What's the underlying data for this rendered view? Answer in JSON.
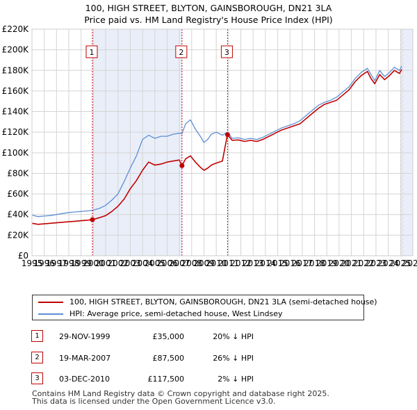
{
  "chart_data": {
    "type": "line",
    "title": "100, HIGH STREET, BLYTON, GAINSBOROUGH, DN21 3LA",
    "subtitle": "Price paid vs. HM Land Registry's House Price Index (HPI)",
    "xlim": [
      1995,
      2026
    ],
    "ylim": [
      0,
      220000
    ],
    "y_ticks": [
      {
        "value": 0,
        "label": "£0"
      },
      {
        "value": 20000,
        "label": "£20K"
      },
      {
        "value": 40000,
        "label": "£40K"
      },
      {
        "value": 60000,
        "label": "£60K"
      },
      {
        "value": 80000,
        "label": "£80K"
      },
      {
        "value": 100000,
        "label": "£100K"
      },
      {
        "value": 120000,
        "label": "£120K"
      },
      {
        "value": 140000,
        "label": "£140K"
      },
      {
        "value": 160000,
        "label": "£160K"
      },
      {
        "value": 180000,
        "label": "£180K"
      },
      {
        "value": 200000,
        "label": "£200K"
      },
      {
        "value": 220000,
        "label": "£220K"
      }
    ],
    "x_ticks": [
      "1995",
      "1996",
      "1997",
      "1998",
      "1999",
      "2000",
      "2001",
      "2002",
      "2003",
      "2004",
      "2005",
      "2006",
      "2007",
      "2008",
      "2009",
      "2010",
      "2011",
      "2012",
      "2013",
      "2014",
      "2015",
      "2016",
      "2017",
      "2018",
      "2019",
      "2020",
      "2021",
      "2022",
      "2023",
      "2024",
      "2025",
      "2026"
    ],
    "grid": true,
    "shaded_regions": [
      [
        1999.92,
        2007.21
      ],
      [
        2025.0,
        2026.0
      ]
    ],
    "colors": {
      "property": "#c00000",
      "hpi": "#5b8fd4",
      "shade": "#e9eef9",
      "grid": "#d4d4d4",
      "marker_line": "#c00000"
    },
    "series": [
      {
        "name": "hpi",
        "label": "HPI: Average price, semi-detached house, West Lindsey",
        "x": [
          1995.0,
          1995.5,
          1996.0,
          1996.5,
          1997.0,
          1997.5,
          1998.0,
          1998.5,
          1999.0,
          1999.5,
          1999.92,
          2000.5,
          2001.0,
          2001.5,
          2002.0,
          2002.5,
          2003.0,
          2003.5,
          2004.0,
          2004.5,
          2005.0,
          2005.5,
          2006.0,
          2006.5,
          2007.0,
          2007.21,
          2007.5,
          2007.9,
          2008.3,
          2008.7,
          2009.0,
          2009.3,
          2009.6,
          2010.0,
          2010.5,
          2010.92,
          2011.3,
          2011.8,
          2012.3,
          2012.8,
          2013.3,
          2013.8,
          2014.3,
          2014.8,
          2015.3,
          2015.8,
          2016.3,
          2016.8,
          2017.3,
          2017.8,
          2018.3,
          2018.8,
          2019.3,
          2019.8,
          2020.3,
          2020.8,
          2021.3,
          2021.8,
          2022.3,
          2022.6,
          2022.9,
          2023.3,
          2023.7,
          2024.1,
          2024.5,
          2024.9,
          2025.1
        ],
        "values": [
          39500,
          38000,
          38500,
          39000,
          40000,
          41000,
          42000,
          42500,
          43000,
          43500,
          44000,
          46000,
          49000,
          54000,
          60000,
          72000,
          85000,
          97000,
          113000,
          117000,
          114000,
          116000,
          116000,
          118000,
          119000,
          118500,
          128000,
          132000,
          123000,
          116000,
          110000,
          113000,
          118000,
          120000,
          117000,
          120000,
          114000,
          114500,
          113000,
          114000,
          113000,
          115000,
          118000,
          121000,
          124000,
          126000,
          128000,
          131000,
          136000,
          141000,
          146000,
          149000,
          151000,
          154000,
          159000,
          164000,
          172000,
          178000,
          182000,
          176000,
          170000,
          180000,
          174000,
          178000,
          183000,
          180000,
          184000
        ]
      },
      {
        "name": "property",
        "label": "100, HIGH STREET, BLYTON, GAINSBOROUGH, DN21 3LA (semi-detached house)",
        "x": [
          1995.0,
          1995.5,
          1996.0,
          1996.5,
          1997.0,
          1997.5,
          1998.0,
          1998.5,
          1999.0,
          1999.5,
          1999.91,
          1999.92,
          2000.5,
          2001.0,
          2001.5,
          2002.0,
          2002.5,
          2003.0,
          2003.5,
          2004.0,
          2004.5,
          2005.0,
          2005.5,
          2006.0,
          2006.5,
          2007.0,
          2007.2,
          2007.21,
          2007.5,
          2007.9,
          2008.3,
          2008.7,
          2009.0,
          2009.3,
          2009.6,
          2010.0,
          2010.5,
          2010.91,
          2010.92,
          2011.3,
          2011.8,
          2012.3,
          2012.8,
          2013.3,
          2013.8,
          2014.3,
          2014.8,
          2015.3,
          2015.8,
          2016.3,
          2016.8,
          2017.3,
          2017.8,
          2018.3,
          2018.8,
          2019.3,
          2019.8,
          2020.3,
          2020.8,
          2021.3,
          2021.8,
          2022.3,
          2022.6,
          2022.9,
          2023.3,
          2023.7,
          2024.1,
          2024.5,
          2024.9,
          2025.1
        ],
        "values": [
          31500,
          30500,
          31000,
          31500,
          32000,
          32500,
          33000,
          33500,
          34000,
          34500,
          35000,
          35000,
          37000,
          39000,
          43000,
          48000,
          55000,
          65000,
          73000,
          83000,
          91000,
          88000,
          89000,
          91000,
          92000,
          93000,
          87500,
          87500,
          94000,
          97000,
          91000,
          86000,
          83000,
          85000,
          88000,
          90000,
          92000,
          117500,
          117500,
          112000,
          112500,
          111000,
          112000,
          111000,
          113000,
          116000,
          119000,
          122000,
          124000,
          126000,
          128000,
          133000,
          138000,
          143000,
          147000,
          149000,
          151000,
          156000,
          161000,
          169000,
          175000,
          179000,
          172000,
          167000,
          176000,
          171000,
          175000,
          180000,
          177000,
          181000
        ]
      }
    ],
    "sales": [
      {
        "id": "1",
        "x": 1999.92,
        "value": 35000
      },
      {
        "id": "2",
        "x": 2007.21,
        "value": 87500
      },
      {
        "id": "3",
        "x": 2010.92,
        "value": 117500
      }
    ]
  },
  "legend": {
    "property_label": "100, HIGH STREET, BLYTON, GAINSBOROUGH, DN21 3LA (semi-detached house)",
    "hpi_label": "HPI: Average price, semi-detached house, West Lindsey"
  },
  "sales_table": [
    {
      "id": "1",
      "date": "29-NOV-1999",
      "price": "£35,000",
      "hpi": "20% ↓ HPI"
    },
    {
      "id": "2",
      "date": "19-MAR-2007",
      "price": "£87,500",
      "hpi": "26% ↓ HPI"
    },
    {
      "id": "3",
      "date": "03-DEC-2010",
      "price": "£117,500",
      "hpi": "2% ↓ HPI"
    }
  ],
  "footer": {
    "line1": "Contains HM Land Registry data © Crown copyright and database right 2025.",
    "line2": "This data is licensed under the Open Government Licence v3.0."
  }
}
